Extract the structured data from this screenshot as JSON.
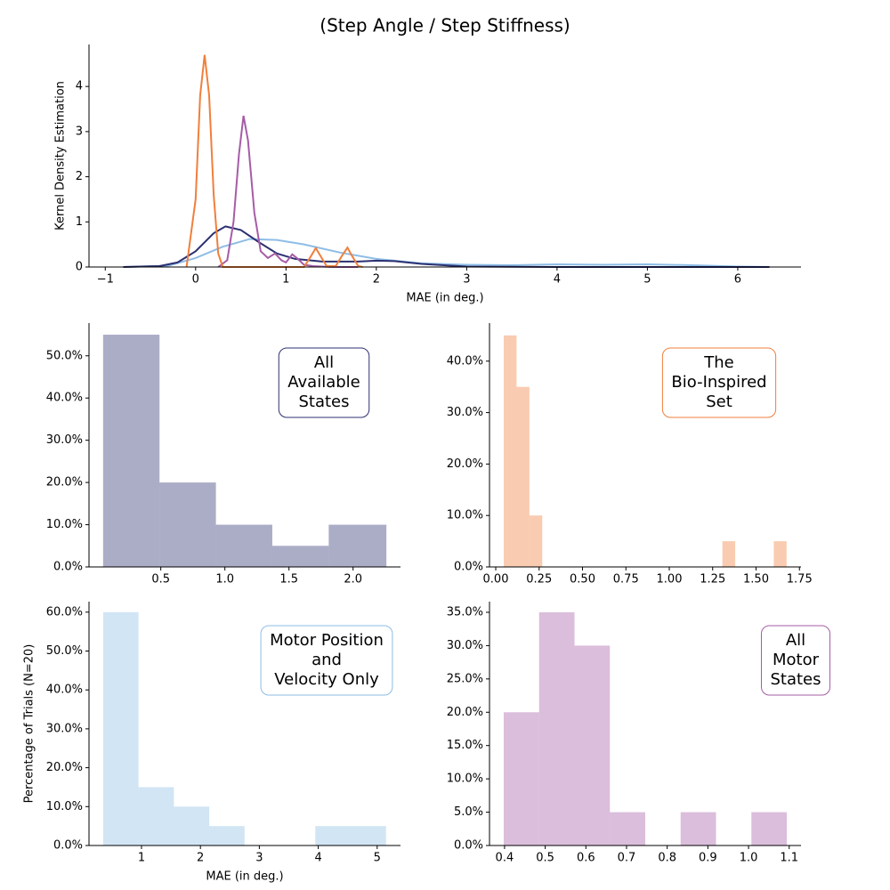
{
  "title": "(Step Angle / Step Stiffness)",
  "chart_data": [
    {
      "type": "line",
      "xlabel": "MAE (in deg.)",
      "ylabel": "Kernel Density Estimation",
      "xlim": [
        -1.18,
        6.7
      ],
      "ylim": [
        0,
        4.93
      ],
      "xticks": [
        {
          "value": -1,
          "label": "−1"
        },
        0,
        1,
        2,
        3,
        4,
        5,
        6
      ],
      "yticks": [
        0,
        1,
        2,
        3,
        4
      ],
      "series": [
        {
          "color": "#8ebde6",
          "x": [
            -0.8,
            -0.3,
            0,
            0.3,
            0.6,
            0.9,
            1.2,
            1.6,
            2.0,
            2.5,
            3.0,
            3.5,
            4.0,
            4.5,
            5.0,
            5.5,
            6.0,
            6.35
          ],
          "values": [
            0,
            0.03,
            0.2,
            0.45,
            0.62,
            0.6,
            0.5,
            0.32,
            0.18,
            0.08,
            0.05,
            0.04,
            0.06,
            0.05,
            0.06,
            0.04,
            0.01,
            0
          ]
        },
        {
          "color": "#2c3172",
          "x": [
            -0.8,
            -0.4,
            -0.2,
            0,
            0.2,
            0.33,
            0.5,
            0.7,
            0.9,
            1.1,
            1.4,
            1.8,
            2.0,
            2.2,
            2.5,
            3.0,
            4.0,
            6.35
          ],
          "values": [
            0,
            0.02,
            0.1,
            0.35,
            0.75,
            0.9,
            0.82,
            0.55,
            0.3,
            0.18,
            0.12,
            0.12,
            0.14,
            0.13,
            0.07,
            0.01,
            0,
            0
          ]
        },
        {
          "color": "#a65ca6",
          "x": [
            0.25,
            0.35,
            0.42,
            0.48,
            0.53,
            0.58,
            0.65,
            0.72,
            0.8,
            0.88,
            0.95,
            1.0,
            1.07,
            1.12,
            1.2,
            1.3,
            1.5,
            1.8
          ],
          "values": [
            0,
            0.15,
            1.0,
            2.5,
            3.35,
            2.8,
            1.2,
            0.35,
            0.2,
            0.3,
            0.15,
            0.1,
            0.28,
            0.2,
            0.05,
            0.02,
            0,
            0
          ]
        },
        {
          "color": "#f07f3c",
          "x": [
            -0.1,
            0,
            0.05,
            0.1,
            0.15,
            0.2,
            0.25,
            0.3,
            1.2,
            1.28,
            1.33,
            1.38,
            1.45,
            1.55,
            1.62,
            1.68,
            1.73,
            1.8,
            1.85
          ],
          "values": [
            0,
            1.5,
            3.8,
            4.7,
            3.8,
            1.6,
            0.3,
            0,
            0,
            0.25,
            0.42,
            0.25,
            0.02,
            0.02,
            0.25,
            0.43,
            0.25,
            0.02,
            0
          ]
        }
      ]
    },
    {
      "type": "histogram",
      "color": "#2c3172",
      "annotation": [
        "All",
        "Available",
        "States"
      ],
      "bins": [
        0.05,
        0.49,
        0.93,
        1.37,
        1.81,
        2.26
      ],
      "values": [
        55,
        20,
        10,
        5,
        10
      ],
      "xlim": [
        -0.06,
        2.37
      ],
      "ylim": [
        0,
        57.75
      ],
      "xticks": [
        0.5,
        {
          "value": 1,
          "label": "1.0"
        },
        1.5,
        {
          "value": 2,
          "label": "2.0"
        }
      ],
      "yticks": [
        {
          "value": 0,
          "label": "0.0%"
        },
        {
          "value": 10,
          "label": "10.0%"
        },
        {
          "value": 20,
          "label": "20.0%"
        },
        {
          "value": 30,
          "label": "30.0%"
        },
        {
          "value": 40,
          "label": "40.0%"
        },
        {
          "value": 50,
          "label": "50.0%"
        }
      ]
    },
    {
      "type": "histogram",
      "color": "#f07f3c",
      "annotation": [
        "The",
        "Bio-Inspired",
        "Set"
      ],
      "bins": [
        0.046,
        0.12,
        0.194,
        0.268,
        0.342,
        0.417,
        0.491,
        0.565,
        0.639,
        0.713,
        0.787,
        0.861,
        0.935,
        1.009,
        1.083,
        1.158,
        1.232,
        1.306,
        1.38,
        1.454,
        1.528,
        1.602,
        1.676
      ],
      "values": [
        45,
        35,
        10,
        0,
        0,
        0,
        0,
        0,
        0,
        0,
        0,
        0,
        0,
        0,
        0,
        0,
        0,
        5,
        0,
        0,
        0,
        5
      ],
      "xlim": [
        -0.036,
        1.759
      ],
      "ylim": [
        0,
        47.4
      ],
      "xticks": [
        {
          "value": 0,
          "label": "0.00"
        },
        0.25,
        {
          "value": 0.5,
          "label": "0.50"
        },
        0.75,
        {
          "value": 1,
          "label": "1.00"
        },
        1.25,
        {
          "value": 1.5,
          "label": "1.50"
        },
        1.75
      ],
      "yticks": [
        {
          "value": 0,
          "label": "0.0%"
        },
        {
          "value": 10,
          "label": "10.0%"
        },
        {
          "value": 20,
          "label": "20.0%"
        },
        {
          "value": 30,
          "label": "30.0%"
        },
        {
          "value": 40,
          "label": "40.0%"
        }
      ]
    },
    {
      "type": "histogram",
      "color": "#8ebde6",
      "annotation": [
        "Motor Position",
        "and",
        "Velocity Only"
      ],
      "xlabel": "MAE (in deg.)",
      "ylabel": "Percentage of Trials (N=20)",
      "bins": [
        0.35,
        0.95,
        1.55,
        2.15,
        2.75,
        3.35,
        3.95,
        4.55,
        5.15
      ],
      "values": [
        60,
        15,
        10,
        5,
        0,
        0,
        5,
        5
      ],
      "xlim": [
        0.109,
        5.396
      ],
      "ylim": [
        0,
        62.7
      ],
      "xticks": [
        1,
        2,
        3,
        4,
        5
      ],
      "yticks": [
        {
          "value": 0,
          "label": "0.0%"
        },
        {
          "value": 10,
          "label": "10.0%"
        },
        {
          "value": 20,
          "label": "20.0%"
        },
        {
          "value": 30,
          "label": "30.0%"
        },
        {
          "value": 40,
          "label": "40.0%"
        },
        {
          "value": 50,
          "label": "50.0%"
        },
        {
          "value": 60,
          "label": "60.0%"
        }
      ]
    },
    {
      "type": "histogram",
      "color": "#a65ca6",
      "annotation": [
        "All",
        "Motor",
        "States"
      ],
      "bins": [
        0.398,
        0.485,
        0.572,
        0.659,
        0.746,
        0.833,
        0.92,
        1.007,
        1.094
      ],
      "values": [
        20,
        35,
        30,
        5,
        0,
        5,
        0,
        5
      ],
      "xlim": [
        0.363,
        1.129
      ],
      "ylim": [
        0,
        36.6
      ],
      "xticks": [
        0.4,
        0.5,
        0.6,
        0.7,
        0.8,
        0.9,
        {
          "value": 1,
          "label": "1.0"
        },
        1.1
      ],
      "yticks": [
        {
          "value": 0,
          "label": "0.0%"
        },
        {
          "value": 5,
          "label": "5.0%"
        },
        {
          "value": 10,
          "label": "10.0%"
        },
        {
          "value": 15,
          "label": "15.0%"
        },
        {
          "value": 20,
          "label": "20.0%"
        },
        {
          "value": 25,
          "label": "25.0%"
        },
        {
          "value": 30,
          "label": "30.0%"
        },
        {
          "value": 35,
          "label": "35.0%"
        }
      ]
    }
  ]
}
